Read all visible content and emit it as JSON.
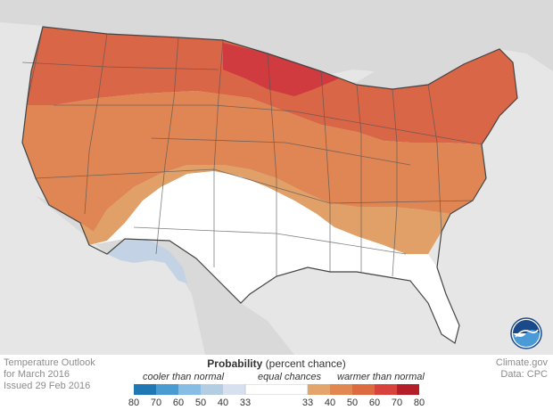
{
  "outlook": {
    "line1": "Temperature Outlook",
    "line2": "for March 2016",
    "line3": "Issued 29 Feb 2016"
  },
  "credit": {
    "line1": "Climate.gov",
    "line2": "Data: CPC"
  },
  "legend": {
    "title_bold": "Probability",
    "title_rest": " (percent chance)",
    "cooler_label": "cooler than normal",
    "equal_label": "equal chances",
    "warmer_label": "warmer than normal",
    "ticks": [
      "80",
      "70",
      "60",
      "50",
      "40",
      "33",
      "33",
      "40",
      "50",
      "60",
      "70",
      "80"
    ],
    "cool_colors": [
      "#1f78b4",
      "#4b9bd3",
      "#85bde5",
      "#b3cde3",
      "#d6e0ee"
    ],
    "neutral_color": "#ffffff",
    "warm_colors": [
      "#e3a56b",
      "#e08850",
      "#dd6b40",
      "#d7433a",
      "#b31e28"
    ]
  },
  "map_colors": {
    "background": "#e6e6e6",
    "land_outside": "#d9d9d9",
    "warm_40_50": "#e0a068",
    "warm_50_60": "#df8654",
    "warm_60_70": "#da6648",
    "warm_70_80": "#cf3b3e",
    "cool_33_40": "#c3d2e4",
    "equal": "#ffffff",
    "borders": "#555555"
  },
  "logo": "noaa-logo"
}
